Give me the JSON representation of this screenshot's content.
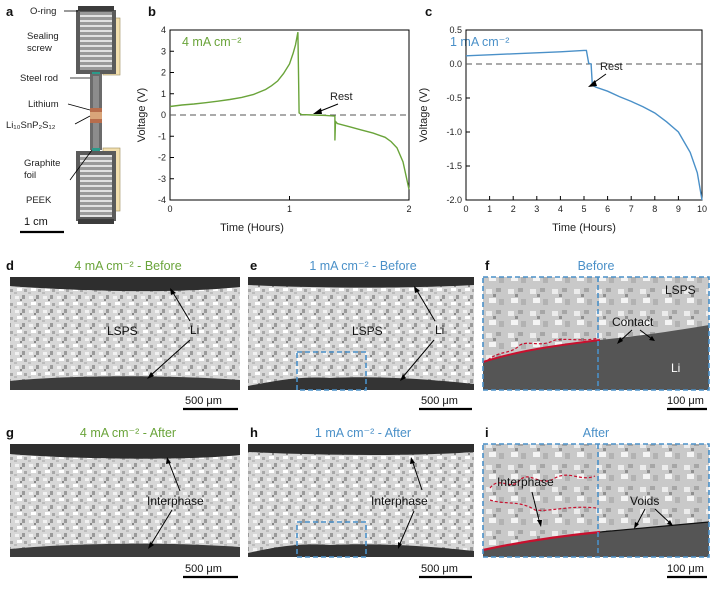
{
  "colors": {
    "green": "#6aa43a",
    "blue": "#4a90c8",
    "red": "#c8102e"
  },
  "panel_a": {
    "letter": "a",
    "labels": {
      "oring": "O-ring",
      "sealing1": "Sealing",
      "sealing2": "screw",
      "steel": "Steel rod",
      "lithium": "Lithium",
      "lsps": "Li₁₀SnP₂S₁₂",
      "graphite1": "Graphite",
      "graphite2": "foil",
      "peek": "PEEK"
    },
    "scale_bar": "1 cm"
  },
  "chart_data": [
    {
      "type": "line",
      "letter": "b",
      "title": "4 mA cm⁻²",
      "xlabel": "Time (Hours)",
      "ylabel": "Voltage (V)",
      "xlim": [
        0,
        2
      ],
      "ylim": [
        -4,
        4
      ],
      "xticks": [
        "0",
        "1",
        "2"
      ],
      "yticks": [
        "4",
        "3",
        "2",
        "1",
        "0",
        "-1",
        "-2",
        "-3",
        "-4"
      ],
      "annotation": "Rest",
      "reference_line_y": 0,
      "series": [
        {
          "x": [
            0,
            0.1,
            0.2,
            0.3,
            0.4,
            0.5,
            0.6,
            0.7,
            0.8,
            0.85,
            0.9,
            0.95,
            1.0,
            1.03,
            1.05,
            1.07,
            1.08,
            1.1,
            1.2,
            1.3,
            1.38,
            1.38,
            1.385,
            1.4,
            1.5,
            1.6,
            1.7,
            1.8,
            1.85,
            1.9,
            1.95,
            2.0
          ],
          "y": [
            0.4,
            0.47,
            0.52,
            0.58,
            0.65,
            0.73,
            0.83,
            0.97,
            1.2,
            1.38,
            1.6,
            1.95,
            2.4,
            2.9,
            3.3,
            3.9,
            0.1,
            0.02,
            0.0,
            -0.02,
            -0.05,
            -1.2,
            -0.3,
            -0.4,
            -0.55,
            -0.7,
            -0.85,
            -1.05,
            -1.25,
            -1.55,
            -2.2,
            -3.5
          ]
        }
      ]
    },
    {
      "type": "line",
      "letter": "c",
      "title": "1 mA cm⁻²",
      "xlabel": "Time (Hours)",
      "ylabel": "Voltage (V)",
      "xlim": [
        0,
        10
      ],
      "ylim": [
        -2.0,
        0.5
      ],
      "xticks": [
        "0",
        "1",
        "2",
        "3",
        "4",
        "5",
        "6",
        "7",
        "8",
        "9",
        "10"
      ],
      "yticks": [
        "0.5",
        "0.0",
        "-0.5",
        "-1.0",
        "-1.5",
        "-2.0"
      ],
      "annotation": "Rest",
      "reference_line_y": 0,
      "series": [
        {
          "x": [
            0,
            1,
            2,
            3,
            4,
            5,
            5.1,
            5.2,
            5.3,
            5.35,
            5.4,
            5.5,
            6,
            6.5,
            7,
            7.5,
            8,
            8.5,
            9,
            9.5,
            9.8,
            10
          ],
          "y": [
            0.12,
            0.135,
            0.15,
            0.165,
            0.18,
            0.2,
            0.2,
            0.01,
            0.0,
            -0.3,
            -0.32,
            -0.34,
            -0.4,
            -0.48,
            -0.55,
            -0.63,
            -0.72,
            -0.85,
            -1.0,
            -1.3,
            -1.6,
            -2.0
          ]
        }
      ]
    }
  ],
  "panels": {
    "d": {
      "letter": "d",
      "title": "4 mA cm⁻² - Before",
      "labels": {
        "lsps": "LSPS",
        "li": "Li"
      },
      "scale_bar": "500 μm"
    },
    "e": {
      "letter": "e",
      "title": "1 mA cm⁻² - Before",
      "labels": {
        "lsps": "LSPS",
        "li": "Li"
      },
      "scale_bar": "500 μm"
    },
    "f": {
      "letter": "f",
      "title": "Before",
      "labels": {
        "lsps": "LSPS",
        "contact": "Contact",
        "li": "Li"
      },
      "scale_bar": "100 μm"
    },
    "g": {
      "letter": "g",
      "title": "4 mA cm⁻² - After",
      "labels": {
        "interphase": "Interphase"
      },
      "scale_bar": "500 μm"
    },
    "h": {
      "letter": "h",
      "title": "1 mA cm⁻² - After",
      "labels": {
        "interphase": "Interphase"
      },
      "scale_bar": "500 μm"
    },
    "i": {
      "letter": "i",
      "title": "After",
      "labels": {
        "interphase": "Interphase",
        "voids": "Voids"
      },
      "scale_bar": "100 μm"
    }
  }
}
